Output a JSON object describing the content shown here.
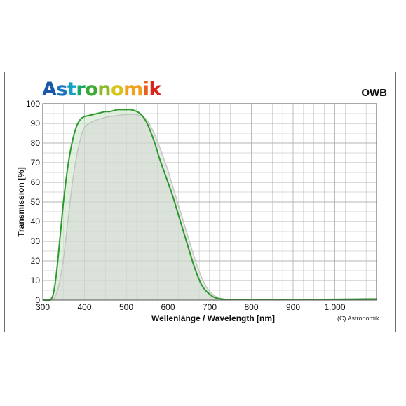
{
  "logo": {
    "text": "Astronomik",
    "letter_colors": [
      "#1b57a8",
      "#1d76bd",
      "#12a0c9",
      "#18a86a",
      "#3aa935",
      "#8dba25",
      "#d8c31b",
      "#f0a21e",
      "#e8601c",
      "#d6261c"
    ]
  },
  "filter_name": "OWB",
  "copyright": "(C) Astronomik",
  "colors": {
    "curve": "#2c9a2c",
    "fill": "#c9e3c5",
    "reference": "#d4d4d4",
    "grid": "#b5b5b5"
  },
  "chart_data": {
    "type": "area",
    "title": "",
    "xlabel": "Wellenlänge / Wavelength [nm]",
    "ylabel": "Transmission [%]",
    "xlim": [
      300,
      1100
    ],
    "ylim": [
      0,
      100
    ],
    "x_ticks": [
      300,
      400,
      500,
      600,
      700,
      800,
      900,
      1000
    ],
    "x_tick_labels": [
      "300",
      "400",
      "500",
      "600",
      "700",
      "800",
      "900",
      "1.000"
    ],
    "y_ticks": [
      0,
      10,
      20,
      30,
      40,
      50,
      60,
      70,
      80,
      90,
      100
    ],
    "y_tick_labels": [
      "0",
      "10",
      "20",
      "30",
      "40",
      "50",
      "60",
      "70",
      "80",
      "90",
      "100"
    ],
    "grid": true,
    "series": [
      {
        "name": "",
        "role": "measured transmission",
        "x": [
          300,
          315,
          320,
          325,
          330,
          335,
          340,
          345,
          350,
          360,
          370,
          380,
          390,
          400,
          410,
          420,
          430,
          440,
          450,
          460,
          470,
          480,
          490,
          500,
          510,
          520,
          530,
          540,
          550,
          560,
          570,
          580,
          590,
          600,
          610,
          620,
          630,
          640,
          650,
          660,
          670,
          680,
          690,
          700,
          710,
          720,
          730,
          740,
          750,
          760,
          780,
          800,
          850,
          900,
          950,
          1000,
          1050,
          1100
        ],
        "y": [
          0,
          0,
          0.5,
          3,
          9,
          18,
          29,
          40,
          51,
          68,
          80,
          88,
          92,
          93.5,
          94,
          94.5,
          95,
          95.5,
          96,
          96,
          96.5,
          97,
          97,
          97,
          97,
          96.5,
          95.5,
          93.5,
          90,
          85,
          79,
          72,
          66,
          60,
          54,
          47,
          40,
          33,
          26,
          19,
          13,
          8,
          5,
          3,
          1.5,
          0.8,
          0.5,
          0.3,
          0.2,
          0.2,
          0.3,
          0.3,
          0.2,
          0.2,
          0.3,
          0.4,
          0.5,
          0.6
        ]
      },
      {
        "name": "",
        "role": "reference transmission",
        "x": [
          300,
          320,
          330,
          340,
          350,
          360,
          370,
          380,
          390,
          400,
          420,
          440,
          460,
          480,
          500,
          520,
          540,
          550,
          560,
          570,
          580,
          590,
          600,
          610,
          620,
          630,
          640,
          650,
          660,
          670,
          680,
          690,
          700,
          710,
          720,
          730,
          740,
          760,
          800,
          1100
        ],
        "y": [
          0,
          0,
          2,
          9,
          22,
          40,
          58,
          72,
          82,
          88,
          91,
          92.5,
          93.5,
          94,
          94.5,
          94.5,
          93.5,
          91.5,
          88,
          83.5,
          78,
          72,
          66,
          59,
          52,
          45,
          38,
          31,
          24,
          17.5,
          12,
          7.5,
          4.5,
          2.5,
          1.3,
          0.7,
          0.4,
          0.2,
          0.1,
          0.1
        ]
      }
    ]
  }
}
